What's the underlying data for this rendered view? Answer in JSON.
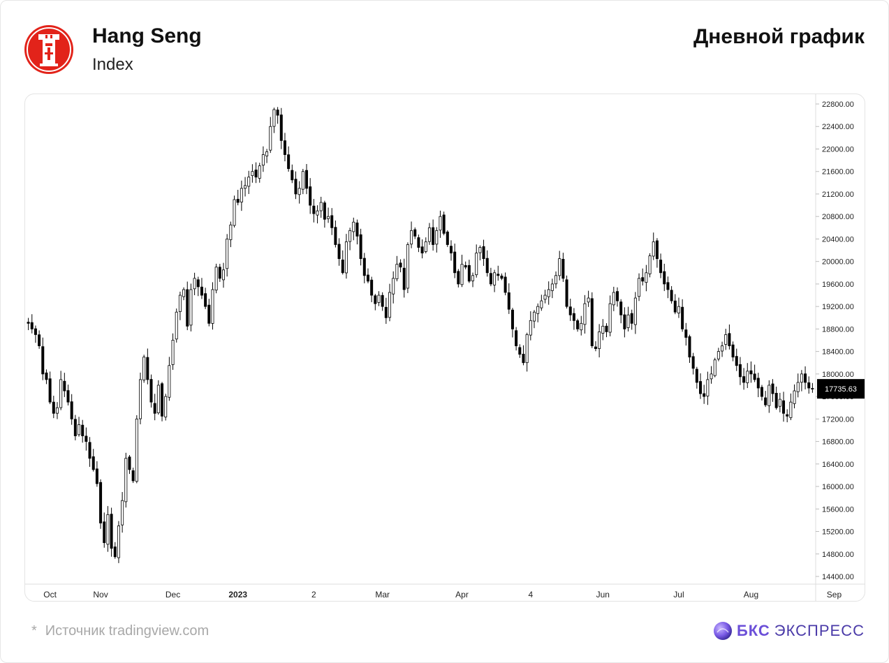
{
  "header": {
    "title": "Hang Seng",
    "subtitle": "Index",
    "period_label": "Дневной график"
  },
  "footer": {
    "source_note": "Источник tradingview.com",
    "brand_primary": "БКС",
    "brand_secondary": "ЭКСПРЕСС"
  },
  "icons": {
    "index_logo": "hang-seng-bank-logo",
    "brand_logo": "bks-sphere-logo"
  },
  "colors": {
    "logo_red": "#e2231a",
    "bullish_body": "#ffffff",
    "bearish_body": "#000000",
    "price_tag_bg": "#000000",
    "brand_purple": "#6b4fd8"
  },
  "chart_data": {
    "type": "candlestick",
    "title": "",
    "xlabel": "",
    "ylabel": "",
    "ylim": [
      14250,
      22900
    ],
    "y_ticks": [
      14400,
      14800,
      15200,
      15600,
      16000,
      16400,
      16800,
      17200,
      17600,
      18000,
      18400,
      18800,
      19200,
      19600,
      20000,
      20400,
      20800,
      21200,
      21600,
      22000,
      22400,
      22800
    ],
    "last_price": 17735.63,
    "grid": false,
    "x_labels": [
      {
        "label": "Oct",
        "index": 6,
        "bold": false
      },
      {
        "label": "Nov",
        "index": 20,
        "bold": false
      },
      {
        "label": "Dec",
        "index": 40,
        "bold": false
      },
      {
        "label": "2023",
        "index": 58,
        "bold": true
      },
      {
        "label": "2",
        "index": 79,
        "bold": false
      },
      {
        "label": "Mar",
        "index": 98,
        "bold": false
      },
      {
        "label": "Apr",
        "index": 120,
        "bold": false
      },
      {
        "label": "4",
        "index": 139,
        "bold": false
      },
      {
        "label": "Jun",
        "index": 159,
        "bold": false
      },
      {
        "label": "Jul",
        "index": 180,
        "bold": false
      },
      {
        "label": "Aug",
        "index": 200,
        "bold": false
      },
      {
        "label": "Sep",
        "index": 223,
        "bold": false
      },
      {
        "label": "Oct",
        "index": 242,
        "bold": false
      }
    ],
    "close_series": [
      18900,
      18800,
      18700,
      18500,
      18000,
      17900,
      17500,
      17300,
      17400,
      17900,
      17700,
      17500,
      17200,
      16900,
      17100,
      16900,
      16800,
      16500,
      16300,
      16050,
      15350,
      15000,
      15500,
      14900,
      14750,
      15300,
      15750,
      16500,
      16300,
      16100,
      17200,
      17900,
      18300,
      17900,
      17500,
      17300,
      17800,
      17250,
      17600,
      18150,
      18600,
      19100,
      19400,
      19500,
      18850,
      19500,
      19700,
      19550,
      19400,
      19200,
      18900,
      19500,
      19900,
      19700,
      19850,
      20400,
      20650,
      21100,
      21050,
      21300,
      21350,
      21500,
      21600,
      21500,
      21700,
      21900,
      21950,
      22400,
      22700,
      22600,
      22150,
      21900,
      21650,
      21450,
      21200,
      21300,
      21600,
      21300,
      21000,
      20850,
      20900,
      21050,
      20750,
      20800,
      20600,
      20300,
      20050,
      19800,
      20350,
      20550,
      20700,
      20450,
      20050,
      19750,
      19650,
      19400,
      19250,
      19400,
      19200,
      19000,
      19450,
      19700,
      19950,
      19900,
      19500,
      20300,
      20550,
      20450,
      20250,
      20150,
      20350,
      20600,
      20300,
      20550,
      20800,
      20500,
      20300,
      20150,
      19800,
      19600,
      19950,
      19900,
      19650,
      19750,
      20150,
      20250,
      20050,
      19800,
      19600,
      19800,
      19750,
      19700,
      19450,
      19150,
      18800,
      18500,
      18350,
      18200,
      18700,
      18950,
      19100,
      19200,
      19300,
      19400,
      19500,
      19600,
      19750,
      20050,
      19700,
      19200,
      19050,
      18950,
      18800,
      18900,
      19250,
      19350,
      18500,
      18450,
      18750,
      18850,
      18750,
      19250,
      19450,
      19300,
      19050,
      18800,
      19050,
      18900,
      19350,
      19700,
      19650,
      19800,
      20100,
      20350,
      20050,
      19800,
      19600,
      19500,
      19300,
      19100,
      19200,
      18800,
      18650,
      18300,
      18100,
      17850,
      17650,
      17600,
      17900,
      18000,
      18250,
      18400,
      18500,
      18700,
      18500,
      18300,
      18150,
      17950,
      17850,
      18050,
      18000,
      17900,
      17750,
      17600,
      17450,
      17800,
      17650,
      17400,
      17550,
      17300,
      17250,
      17500,
      17700,
      17850,
      18000,
      17850,
      17750,
      17735.63
    ]
  }
}
